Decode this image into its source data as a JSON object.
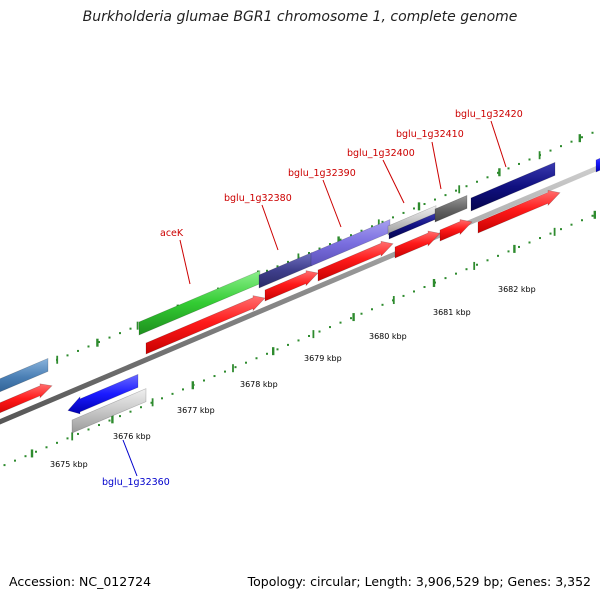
{
  "title": "Burkholderia glumae BGR1 chromosome 1, complete genome",
  "footer": {
    "accession": "Accession: NC_012724",
    "summary": "Topology: circular; Length: 3,906,529 bp; Genes: 3,352"
  },
  "colors": {
    "backbone": "#8a8a8a",
    "cds_red": "#ff1a1a",
    "dots": "#2e8b2e",
    "forward_label": "#cc0000",
    "reverse_label": "#0000cc"
  },
  "kbp_labels": [
    "3675 kbp",
    "3676 kbp",
    "3677 kbp",
    "3678 kbp",
    "3679 kbp",
    "3680 kbp",
    "3681 kbp",
    "3682 kbp"
  ],
  "gene_labels": [
    {
      "text": "aceK",
      "strand": "forward"
    },
    {
      "text": "bglu_1g32380",
      "strand": "forward"
    },
    {
      "text": "bglu_1g32390",
      "strand": "forward"
    },
    {
      "text": "bglu_1g32400",
      "strand": "forward"
    },
    {
      "text": "bglu_1g32410",
      "strand": "forward"
    },
    {
      "text": "bglu_1g32420",
      "strand": "forward"
    },
    {
      "text": "bglu_1g32360",
      "strand": "reverse"
    }
  ]
}
